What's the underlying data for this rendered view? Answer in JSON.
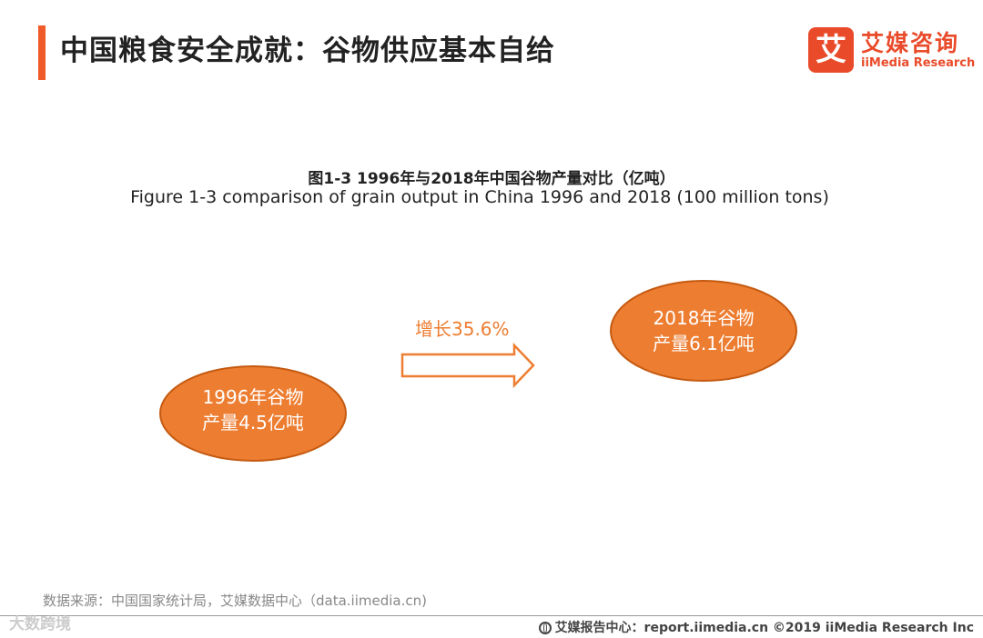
{
  "header": {
    "title": "中国粮食安全成就：谷物供应基本自给"
  },
  "logo": {
    "mark": "艾",
    "name_cn": "艾媒咨询",
    "name_en": "iiMedia Research"
  },
  "figure": {
    "caption_cn": "图1-3 1996年与2018年中国谷物产量对比（亿吨）",
    "caption_en": "Figure 1-3 comparison of grain output  in China 1996 and 2018 (100 million tons)"
  },
  "nodes": [
    {
      "line1": "1996年谷物",
      "line2": "产量4.5亿吨"
    },
    {
      "line1": "2018年谷物",
      "line2": "产量6.1亿吨"
    }
  ],
  "arrow": {
    "label": "增长35.6%"
  },
  "colors": {
    "accent": "#f05a28",
    "node_fill": "#ed7d31",
    "node_stroke": "#c55a11"
  },
  "footer": {
    "source": "数据来源：中国国家统计局，艾媒数据中心（data.iimedia.cn)",
    "watermark": "大数跨境",
    "right": "艾媒报告中心：report.iimedia.cn  ©2019  iiMedia Research  Inc",
    "globe_icon": "globe-icon"
  }
}
